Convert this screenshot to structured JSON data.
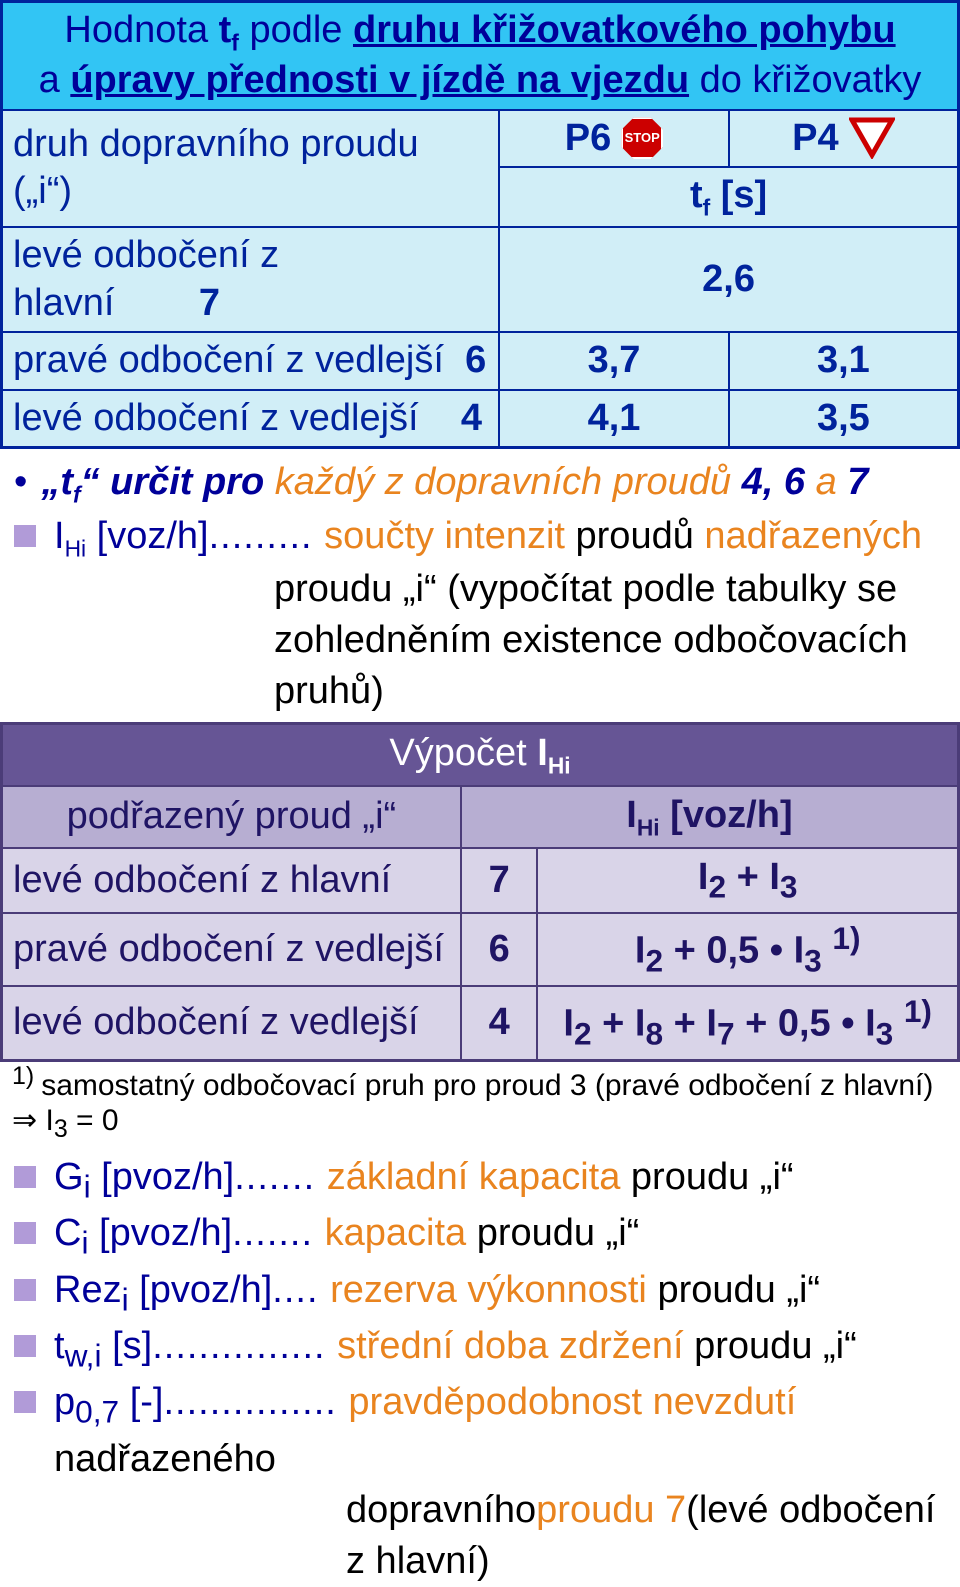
{
  "colors": {
    "blue_border": "#00239c",
    "blue_header_bg": "#32c5f4",
    "blue_row_bg": "#d1eef7",
    "navy_text": "#00239c",
    "deep_blue_text": "#000099",
    "orange_text": "#e9841f",
    "purple_border": "#4b3c78",
    "purple_title_bg": "#665595",
    "purple_head_bg": "#b7aed2",
    "purple_row_bg": "#d9d4e8",
    "bullet_square": "#b19bd8",
    "stop_bg": "#cc0000"
  },
  "table1": {
    "title_parts": {
      "a": "Hodnota ",
      "b": "t",
      "b_sub": "f",
      "c": " podle ",
      "d": "druhu křižovatkového pohybu",
      "e": "a ",
      "f": "úpravy přednosti v jízdě na vjezdu",
      "g": " do křižovatky"
    },
    "row_label": "druh dopravního proudu („i“)",
    "p6": "P6",
    "p4": "P4",
    "tf_unit_a": "t",
    "tf_unit_sub": "f",
    "tf_unit_b": " [s]",
    "rows": [
      {
        "label": "levé odbočení z hlavní",
        "num": "7",
        "p6": "2,6",
        "p4": ""
      },
      {
        "label": "pravé odbočení z vedlejší",
        "num": "6",
        "p6": "3,7",
        "p4": "3,1"
      },
      {
        "label": "levé odbočení z vedlejší",
        "num": "4",
        "p6": "4,1",
        "p4": "3,5"
      }
    ]
  },
  "bullet_tf": {
    "a": "„t",
    "a_sub": "f",
    "b": "“ určit pro ",
    "c": "každý z dopravních proudů ",
    "d": "4, 6 ",
    "e": "a",
    "f": " 7"
  },
  "ihi": {
    "lhs_a": "I",
    "lhs_sub": "Hi",
    "lhs_b": " [voz/h]",
    "dots": "......... ",
    "p1": "součty intenzit ",
    "p2": "proudů ",
    "p3": "nadřazených",
    "l2a": "proudu „i“ (",
    "l2b": "vypočítat podle tabulky se",
    "l3": "zohledněním existence odbočovacích",
    "l4": "pruhů",
    "l4b": ")"
  },
  "table2": {
    "title_a": "Výpočet ",
    "title_b": "I",
    "title_sub": "Hi",
    "head_left": "podřazený proud „i“",
    "head_right_a": "I",
    "head_right_sub": "Hi",
    "head_right_b": " [voz/h]",
    "rows": [
      {
        "label": "levé odbočení z hlavní",
        "num": "7",
        "formula_html": "I<sub>2</sub> + I<sub>3</sub>"
      },
      {
        "label": "pravé odbočení z vedlejší",
        "num": "6",
        "formula_html": "I<sub>2</sub> + 0,5 • I<sub>3</sub> <sup>1)</sup>"
      },
      {
        "label": "levé odbočení z vedlejší",
        "num": "4",
        "formula_html": "I<sub>2</sub> + I<sub>8</sub> + I<sub>7</sub> + 0,5 • I<sub>3</sub> <sup>1)</sup>"
      }
    ]
  },
  "footnote": {
    "sup": "1) ",
    "a": "samostatný odbočovací pruh pro proud 3 (pravé odbočení z hlavní) ⇒ I",
    "sub": "3",
    "b": " = 0"
  },
  "defs": [
    {
      "sym_html": "G<sub>i</sub> [pvoz/h]",
      "dots": "....... ",
      "d1": "základní kapacita ",
      "d2": "proudu „i“"
    },
    {
      "sym_html": "C<sub>i</sub> [pvoz/h]",
      "dots": "....... ",
      "d1": "kapacita ",
      "d2": "proudu „i“"
    },
    {
      "sym_html": "Rez<sub>i</sub> [pvoz/h]",
      "dots": ".... ",
      "d1": "rezerva výkonnosti ",
      "d2": "proudu „i“"
    },
    {
      "sym_html": "t<sub>w,i</sub> [s]",
      "dots": "............... ",
      "d1": "střední doba zdržení ",
      "d2": "proudu „i“"
    }
  ],
  "p07": {
    "sym_html": "p<sub>0,7</sub> [-]",
    "dots": "............... ",
    "a": "pravděpodobnost nevzdutí ",
    "b": "nadřazeného",
    "l2a": "dopravního ",
    "l2b": "proudu 7 ",
    "l2c": "(levé odbočení",
    "l3": "z hlavní)"
  }
}
